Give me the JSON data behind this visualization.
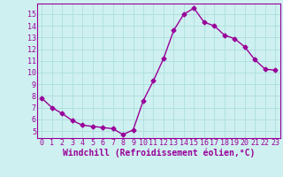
{
  "x": [
    0,
    1,
    2,
    3,
    4,
    5,
    6,
    7,
    8,
    9,
    10,
    11,
    12,
    13,
    14,
    15,
    16,
    17,
    18,
    19,
    20,
    21,
    22,
    23
  ],
  "y": [
    7.8,
    7.0,
    6.5,
    5.9,
    5.5,
    5.4,
    5.3,
    5.2,
    4.7,
    5.1,
    7.6,
    9.3,
    11.2,
    13.6,
    15.0,
    15.5,
    14.3,
    14.0,
    13.2,
    12.9,
    12.2,
    11.1,
    10.3,
    10.2
  ],
  "line_color": "#990099",
  "marker": "D",
  "marker_size": 2.5,
  "line_width": 1.0,
  "xlabel": "Windchill (Refroidissement éolien,°C)",
  "xlabel_fontsize": 7,
  "xlabel_color": "#990099",
  "ylabel_ticks": [
    5,
    6,
    7,
    8,
    9,
    10,
    11,
    12,
    13,
    14,
    15
  ],
  "xlim": [
    -0.5,
    23.5
  ],
  "ylim": [
    4.4,
    15.9
  ],
  "background_color": "#cff0f0",
  "grid_color": "#b0e0e0",
  "tick_color": "#990099",
  "tick_fontsize": 6,
  "tick_font": "monospace"
}
